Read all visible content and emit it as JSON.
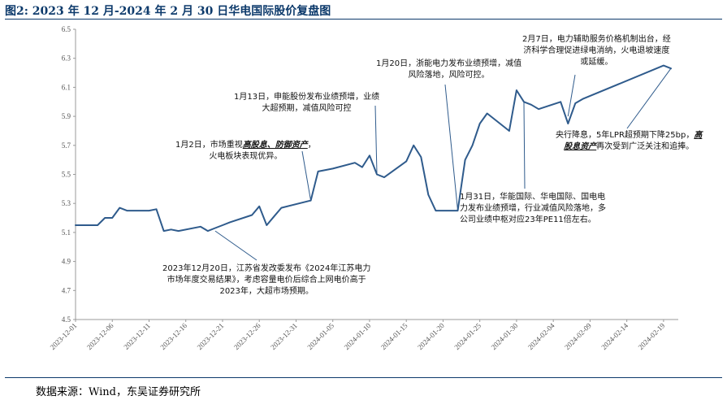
{
  "figure": {
    "title": "图2:  2023 年 12 月-2024 年 2 月 30 日华电国际股价复盘图",
    "source": "数据来源：Wind，东吴证券研究所"
  },
  "colors": {
    "line": "#2f5b8c",
    "title": "#0d3a6b"
  },
  "chart_data": {
    "type": "line",
    "title": "",
    "xlabel": "",
    "ylabel": "",
    "ylim": [
      4.5,
      6.5
    ],
    "yticks": [
      "4.5",
      "4.7",
      "4.9",
      "5.1",
      "5.3",
      "5.5",
      "5.7",
      "5.9",
      "6.1",
      "6.3",
      "6.5"
    ],
    "xticks": [
      "2023-12-01",
      "2023-12-06",
      "2023-12-11",
      "2023-12-16",
      "2023-12-21",
      "2023-12-26",
      "2023-12-31",
      "2024-01-05",
      "2024-01-10",
      "2024-01-15",
      "2024-01-20",
      "2024-01-25",
      "2024-01-30",
      "2024-02-04",
      "2024-02-09",
      "2024-02-14",
      "2024-02-19"
    ],
    "grid": false,
    "x": [
      "2023-12-01",
      "2023-12-04",
      "2023-12-05",
      "2023-12-06",
      "2023-12-07",
      "2023-12-08",
      "2023-12-11",
      "2023-12-12",
      "2023-12-13",
      "2023-12-14",
      "2023-12-15",
      "2023-12-18",
      "2023-12-19",
      "2023-12-20",
      "2023-12-21",
      "2023-12-22",
      "2023-12-25",
      "2023-12-26",
      "2023-12-27",
      "2023-12-28",
      "2023-12-29",
      "2024-01-02",
      "2024-01-03",
      "2024-01-04",
      "2024-01-05",
      "2024-01-08",
      "2024-01-09",
      "2024-01-10",
      "2024-01-11",
      "2024-01-12",
      "2024-01-15",
      "2024-01-16",
      "2024-01-17",
      "2024-01-18",
      "2024-01-19",
      "2024-01-22",
      "2024-01-23",
      "2024-01-24",
      "2024-01-25",
      "2024-01-26",
      "2024-01-29",
      "2024-01-30",
      "2024-01-31",
      "2024-02-01",
      "2024-02-02",
      "2024-02-05",
      "2024-02-06",
      "2024-02-07",
      "2024-02-08",
      "2024-02-19",
      "2024-02-20"
    ],
    "series": [
      {
        "values": [
          5.15,
          5.15,
          5.2,
          5.2,
          5.27,
          5.25,
          5.25,
          5.26,
          5.11,
          5.12,
          5.11,
          5.14,
          5.11,
          5.13,
          5.15,
          5.17,
          5.22,
          5.28,
          5.15,
          5.21,
          5.27,
          5.32,
          5.52,
          5.53,
          5.54,
          5.58,
          5.55,
          5.63,
          5.5,
          5.48,
          5.59,
          5.7,
          5.62,
          5.36,
          5.25,
          5.25,
          5.6,
          5.7,
          5.85,
          5.92,
          5.8,
          6.08,
          6.0,
          5.98,
          5.95,
          6.0,
          5.85,
          5.99,
          6.02,
          6.25,
          6.23
        ]
      }
    ],
    "annotations": [
      "2023年12月20日，江苏省发改委发布《2024年江苏电力市场年度交易结果》，考虑容量电价后综合上网电价高于2023年，大超市场预期。",
      "1月2日，市场重视高股息、防御资产，火电板块表现优异。",
      "1月13日，申能股份发布业绩预增，业绩大超预期，减值风险可控",
      "1月20日，浙能电力发布业绩预增，减值风险落地，风险可控。",
      "1月31日，华能国际、华电国际、国电电力发布业绩预增，行业减值风险落地，多公司业绩中枢对应23年PE11倍左右。",
      "2月7日，电力辅助服务价格机制出台，经济科学合理促进绿电消纳，火电退坡速度或延缓。",
      "央行降息，5年LPR超预期下降25bp，高股息资产再次受到广泛关注和追捧。"
    ]
  },
  "annotations_text": {
    "a1": [
      "2023年12月20日，江苏省发改委发布《2024年江苏电力",
      "市场年度交易结果》，考虑容量电价后综合上网电价高于",
      "2023年，大超市场预期。"
    ],
    "a2_l1_pre": "1月2日，市场重视",
    "a2_l1_em": "高股息、防御资产",
    "a2_l1_post": "，",
    "a2_l2": "火电板块表现优异。",
    "a3": [
      "1月13日，申能股份发布业绩预增，业绩",
      "大超预期，减值风险可控"
    ],
    "a4": [
      "1月20日，浙能电力发布业绩预增，减值",
      "风险落地，风险可控。"
    ],
    "a5": [
      "1月31日，华能国际、华电国际、国电电",
      "力发布业绩预增，行业减值风险落地，多",
      "公司业绩中枢对应23年PE11倍左右。"
    ],
    "a6": [
      "2月7日，电力辅助服务价格机制出台，经",
      "济科学合理促进绿电消纳，火电退坡速度",
      "或延缓。"
    ],
    "a7_l1_pre": "央行降息，5年LPR超预期下降25bp，",
    "a7_l1_em": "高",
    "a7_l2_em": "股息资产",
    "a7_l2_post": "再次受到广泛关注和追捧。"
  }
}
